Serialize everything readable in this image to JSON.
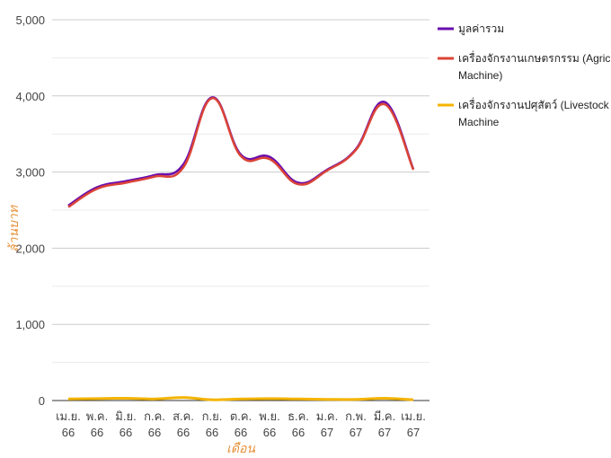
{
  "chart_data": {
    "type": "line",
    "title": "",
    "xlabel": "เดือน",
    "ylabel": "ล้านบาท",
    "ylim": [
      0,
      5000
    ],
    "y_ticks": [
      0,
      1000,
      2000,
      3000,
      4000,
      5000
    ],
    "y_tick_labels": [
      "0",
      "1,000",
      "2,000",
      "3,000",
      "4,000",
      "5,000"
    ],
    "grid": true,
    "legend_position": "right",
    "categories": [
      [
        "เม.ย.",
        "66"
      ],
      [
        "พ.ค.",
        "66"
      ],
      [
        "มิ.ย.",
        "66"
      ],
      [
        "ก.ค.",
        "66"
      ],
      [
        "ส.ค.",
        "66"
      ],
      [
        "ก.ย.",
        "66"
      ],
      [
        "ต.ค.",
        "66"
      ],
      [
        "พ.ย.",
        "66"
      ],
      [
        "ธ.ค.",
        "66"
      ],
      [
        "ม.ค.",
        "67"
      ],
      [
        "ก.พ.",
        "67"
      ],
      [
        "มี.ค.",
        "67"
      ],
      [
        "เม.ย.",
        "67"
      ]
    ],
    "series": [
      {
        "name": "มูลค่ารวม",
        "color": "#6a0dad",
        "values": [
          2560,
          2800,
          2880,
          2960,
          3100,
          3980,
          3230,
          3200,
          2860,
          3030,
          3300,
          3920,
          3040
        ]
      },
      {
        "name": "เครื่องจักรงานเกษตรกรรม (Agricultural Machine)",
        "legend_lines": [
          "เครื่องจักรงานเกษตรกรรม (Agricultural",
          "Machine)"
        ],
        "color": "#db4437",
        "values": [
          2540,
          2780,
          2860,
          2940,
          3060,
          3970,
          3210,
          3170,
          2840,
          3020,
          3290,
          3890,
          3030
        ]
      },
      {
        "name": "เครื่องจักรงานปศุสัตว์ (Livestock Machine)",
        "legend_lines": [
          "เครื่องจักรงานปศุสัตว์ (Livestock",
          "Machine"
        ],
        "color": "#f4b400",
        "values": [
          20,
          25,
          30,
          20,
          40,
          10,
          20,
          25,
          20,
          15,
          15,
          30,
          10
        ]
      }
    ]
  }
}
